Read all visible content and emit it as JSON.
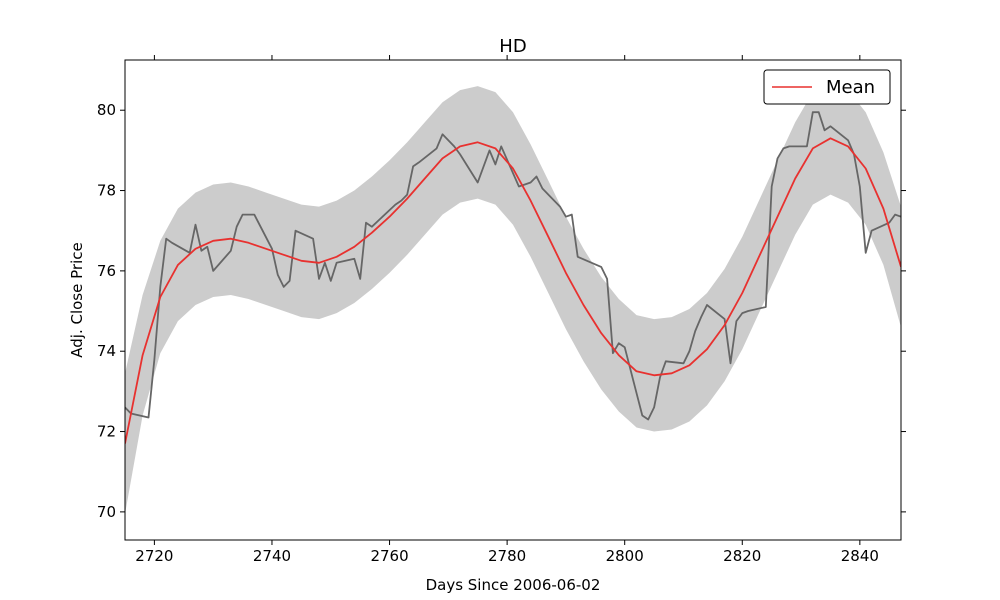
{
  "chart_data": {
    "type": "line",
    "title": "HD",
    "xlabel": "Days Since 2006-06-02",
    "ylabel": "Adj. Close Price",
    "xlim": [
      2715,
      2847
    ],
    "ylim": [
      69.3,
      81.25
    ],
    "x_ticks": [
      2720,
      2740,
      2760,
      2780,
      2800,
      2820,
      2840
    ],
    "y_ticks": [
      70,
      72,
      74,
      76,
      78,
      80
    ],
    "grid": false,
    "legend": {
      "placement": "top-right",
      "entries": [
        "Mean"
      ]
    },
    "colors": {
      "mean": "#e8312f",
      "observed": "#666666",
      "band": "#cccccc"
    },
    "series": [
      {
        "role": "observed",
        "x": [
          2715,
          2716,
          2719,
          2720,
          2721,
          2722,
          2723,
          2726,
          2727,
          2728,
          2729,
          2730,
          2733,
          2734,
          2735,
          2737,
          2740,
          2741,
          2742,
          2743,
          2744,
          2747,
          2748,
          2749,
          2750,
          2751,
          2754,
          2755,
          2756,
          2757,
          2761,
          2762,
          2763,
          2764,
          2765,
          2768,
          2769,
          2771,
          2772,
          2775,
          2776,
          2777,
          2778,
          2779,
          2782,
          2783,
          2784,
          2785,
          2786,
          2789,
          2790,
          2791,
          2792,
          2796,
          2797,
          2798,
          2799,
          2800,
          2803,
          2804,
          2805,
          2806,
          2807,
          2810,
          2811,
          2812,
          2813,
          2814,
          2817,
          2818,
          2819,
          2820,
          2821,
          2824,
          2825,
          2826,
          2827,
          2828,
          2831,
          2832,
          2833,
          2834,
          2835,
          2838,
          2839,
          2840,
          2841,
          2842,
          2845,
          2846,
          2847
        ],
        "y": [
          72.6,
          72.45,
          72.35,
          73.8,
          75.6,
          76.8,
          76.7,
          76.45,
          77.15,
          76.5,
          76.6,
          76.0,
          76.5,
          77.1,
          77.4,
          77.4,
          76.55,
          75.9,
          75.6,
          75.75,
          77.0,
          76.8,
          75.8,
          76.2,
          75.75,
          76.2,
          76.3,
          75.8,
          77.2,
          77.1,
          77.65,
          77.75,
          77.9,
          78.6,
          78.7,
          79.05,
          79.4,
          79.1,
          78.9,
          78.2,
          78.6,
          79.0,
          78.65,
          79.1,
          78.1,
          78.15,
          78.2,
          78.35,
          78.05,
          77.6,
          77.35,
          77.4,
          76.35,
          76.1,
          75.8,
          73.95,
          74.2,
          74.1,
          72.4,
          72.3,
          72.6,
          73.35,
          73.75,
          73.7,
          74.0,
          74.5,
          74.85,
          75.15,
          74.8,
          73.7,
          74.75,
          74.95,
          75.0,
          75.1,
          78.1,
          78.8,
          79.05,
          79.1,
          79.1,
          79.95,
          79.95,
          79.5,
          79.6,
          79.25,
          78.9,
          78.1,
          76.45,
          77.0,
          77.2,
          77.4,
          77.35
        ]
      },
      {
        "role": "mean",
        "name": "Mean",
        "x": [
          2715,
          2718,
          2721,
          2724,
          2727,
          2730,
          2733,
          2736,
          2739,
          2742,
          2745,
          2748,
          2751,
          2754,
          2757,
          2760,
          2763,
          2766,
          2769,
          2772,
          2775,
          2778,
          2781,
          2784,
          2787,
          2790,
          2793,
          2796,
          2799,
          2802,
          2805,
          2808,
          2811,
          2814,
          2817,
          2820,
          2823,
          2826,
          2829,
          2832,
          2835,
          2838,
          2841,
          2844,
          2847
        ],
        "y": [
          71.7,
          73.9,
          75.35,
          76.15,
          76.55,
          76.75,
          76.8,
          76.7,
          76.55,
          76.4,
          76.25,
          76.2,
          76.35,
          76.6,
          76.95,
          77.35,
          77.8,
          78.3,
          78.8,
          79.1,
          79.2,
          79.05,
          78.55,
          77.75,
          76.85,
          75.95,
          75.15,
          74.45,
          73.9,
          73.5,
          73.4,
          73.45,
          73.65,
          74.05,
          74.65,
          75.45,
          76.4,
          77.35,
          78.3,
          79.05,
          79.3,
          79.1,
          78.55,
          77.55,
          76.1
        ]
      },
      {
        "role": "band-upper",
        "x": [
          2715,
          2718,
          2721,
          2724,
          2727,
          2730,
          2733,
          2736,
          2739,
          2742,
          2745,
          2748,
          2751,
          2754,
          2757,
          2760,
          2763,
          2766,
          2769,
          2772,
          2775,
          2778,
          2781,
          2784,
          2787,
          2790,
          2793,
          2796,
          2799,
          2802,
          2805,
          2808,
          2811,
          2814,
          2817,
          2820,
          2823,
          2826,
          2829,
          2832,
          2835,
          2838,
          2841,
          2844,
          2847
        ],
        "y": [
          73.45,
          75.4,
          76.75,
          77.55,
          77.95,
          78.15,
          78.2,
          78.1,
          77.95,
          77.8,
          77.65,
          77.6,
          77.75,
          78.0,
          78.35,
          78.75,
          79.2,
          79.7,
          80.2,
          80.5,
          80.6,
          80.45,
          79.95,
          79.15,
          78.25,
          77.35,
          76.55,
          75.85,
          75.3,
          74.9,
          74.8,
          74.85,
          75.05,
          75.45,
          76.05,
          76.85,
          77.8,
          78.75,
          79.7,
          80.45,
          80.7,
          80.5,
          79.95,
          78.95,
          77.6
        ]
      },
      {
        "role": "band-lower",
        "x": [
          2715,
          2718,
          2721,
          2724,
          2727,
          2730,
          2733,
          2736,
          2739,
          2742,
          2745,
          2748,
          2751,
          2754,
          2757,
          2760,
          2763,
          2766,
          2769,
          2772,
          2775,
          2778,
          2781,
          2784,
          2787,
          2790,
          2793,
          2796,
          2799,
          2802,
          2805,
          2808,
          2811,
          2814,
          2817,
          2820,
          2823,
          2826,
          2829,
          2832,
          2835,
          2838,
          2841,
          2844,
          2847
        ],
        "y": [
          69.95,
          72.4,
          73.95,
          74.75,
          75.15,
          75.35,
          75.4,
          75.3,
          75.15,
          75.0,
          74.85,
          74.8,
          74.95,
          75.2,
          75.55,
          75.95,
          76.4,
          76.9,
          77.4,
          77.7,
          77.8,
          77.65,
          77.15,
          76.35,
          75.45,
          74.55,
          73.75,
          73.05,
          72.5,
          72.1,
          72.0,
          72.05,
          72.25,
          72.65,
          73.25,
          74.05,
          75.0,
          75.95,
          76.9,
          77.65,
          77.9,
          77.7,
          77.15,
          76.15,
          74.6
        ]
      }
    ]
  }
}
